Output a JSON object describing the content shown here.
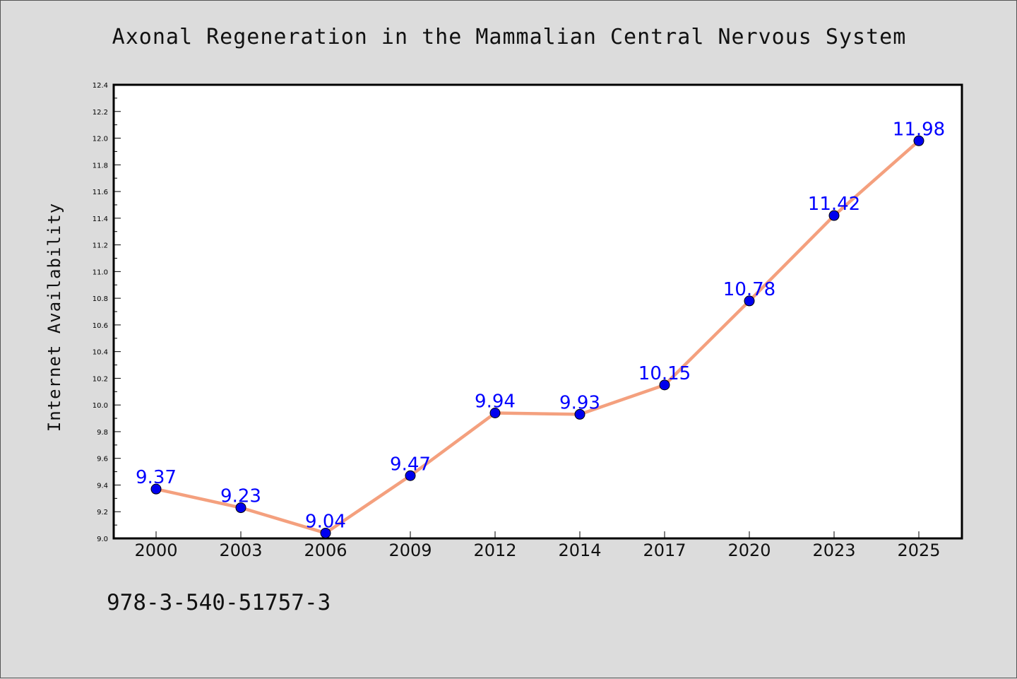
{
  "chart_data": {
    "type": "line",
    "title": "Axonal Regeneration in the Mammalian Central Nervous System",
    "xlabel": "",
    "ylabel": "Internet Availability",
    "categories": [
      "2000",
      "2003",
      "2006",
      "2009",
      "2012",
      "2014",
      "2017",
      "2020",
      "2023",
      "2025"
    ],
    "series": [
      {
        "values": [
          9.37,
          9.23,
          9.04,
          9.47,
          9.94,
          9.93,
          10.15,
          10.78,
          11.42,
          11.98
        ],
        "data_labels": [
          "9.37",
          "9.23",
          "9.04",
          "9.47",
          "9.94",
          "9.93",
          "10.15",
          "10.78",
          "11.42",
          "11.98"
        ]
      }
    ],
    "ylim": [
      9.0,
      12.4
    ],
    "yticks": [
      "9.0",
      "9.2",
      "9.4",
      "9.6",
      "9.8",
      "10.0",
      "10.2",
      "10.4",
      "10.6",
      "10.8",
      "11.0",
      "11.2",
      "11.4",
      "11.6",
      "11.8",
      "12.0",
      "12.2",
      "12.4"
    ],
    "grid": false,
    "legend": "none",
    "line_color": "#f4a07e",
    "marker_color": "#0000ee",
    "label_color": "#0000ff"
  },
  "footer": {
    "text": "978-3-540-51757-3"
  }
}
